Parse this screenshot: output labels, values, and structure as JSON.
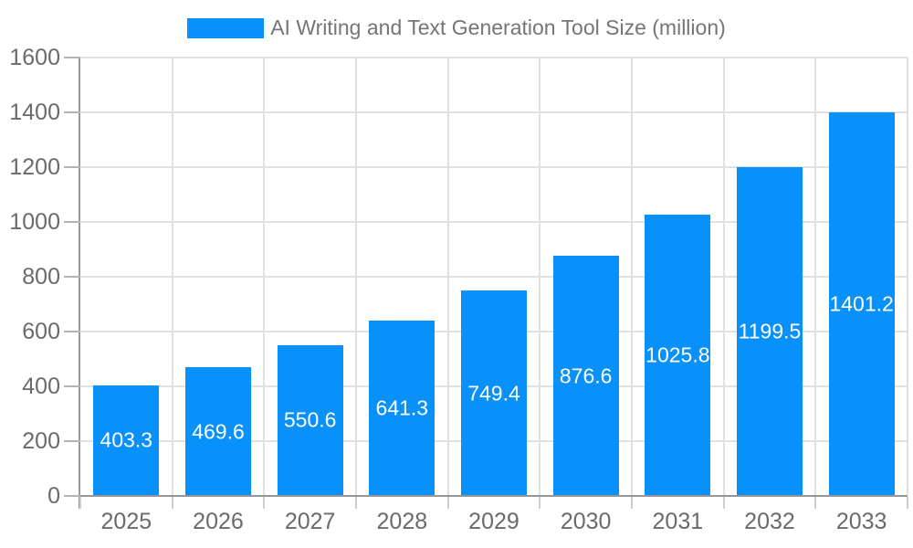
{
  "legend": {
    "label": "AI Writing and Text Generation Tool Size (million)"
  },
  "chart_data": {
    "type": "bar",
    "title": "",
    "legend_entries": [
      "AI Writing and Text Generation Tool Size (million)"
    ],
    "legend_position": "top",
    "categories": [
      "2025",
      "2026",
      "2027",
      "2028",
      "2029",
      "2030",
      "2031",
      "2032",
      "2033"
    ],
    "values": [
      403.3,
      469.6,
      550.6,
      641.3,
      749.4,
      876.6,
      1025.8,
      1199.5,
      1401.2
    ],
    "value_labels": [
      "403.3",
      "469.6",
      "550.6",
      "641.3",
      "749.4",
      "876.6",
      "1025.8",
      "1199.5",
      "1401.2"
    ],
    "xlabel": "",
    "ylabel": "",
    "ylim": [
      0,
      1600
    ],
    "yticks": [
      0,
      200,
      400,
      600,
      800,
      1000,
      1200,
      1400,
      1600
    ],
    "grid": "horizontal-and-vertical",
    "colors": {
      "bar": "#0890fb",
      "value_label": "#ffffff",
      "axis_label": "#6a6a6a",
      "legend_text": "#757575",
      "gridline": "#e1e1e1",
      "axis_line": "#969696",
      "x_tick": "#cdcdcd",
      "y_tick": "#b4b4b4",
      "background": "#ffffff"
    }
  }
}
